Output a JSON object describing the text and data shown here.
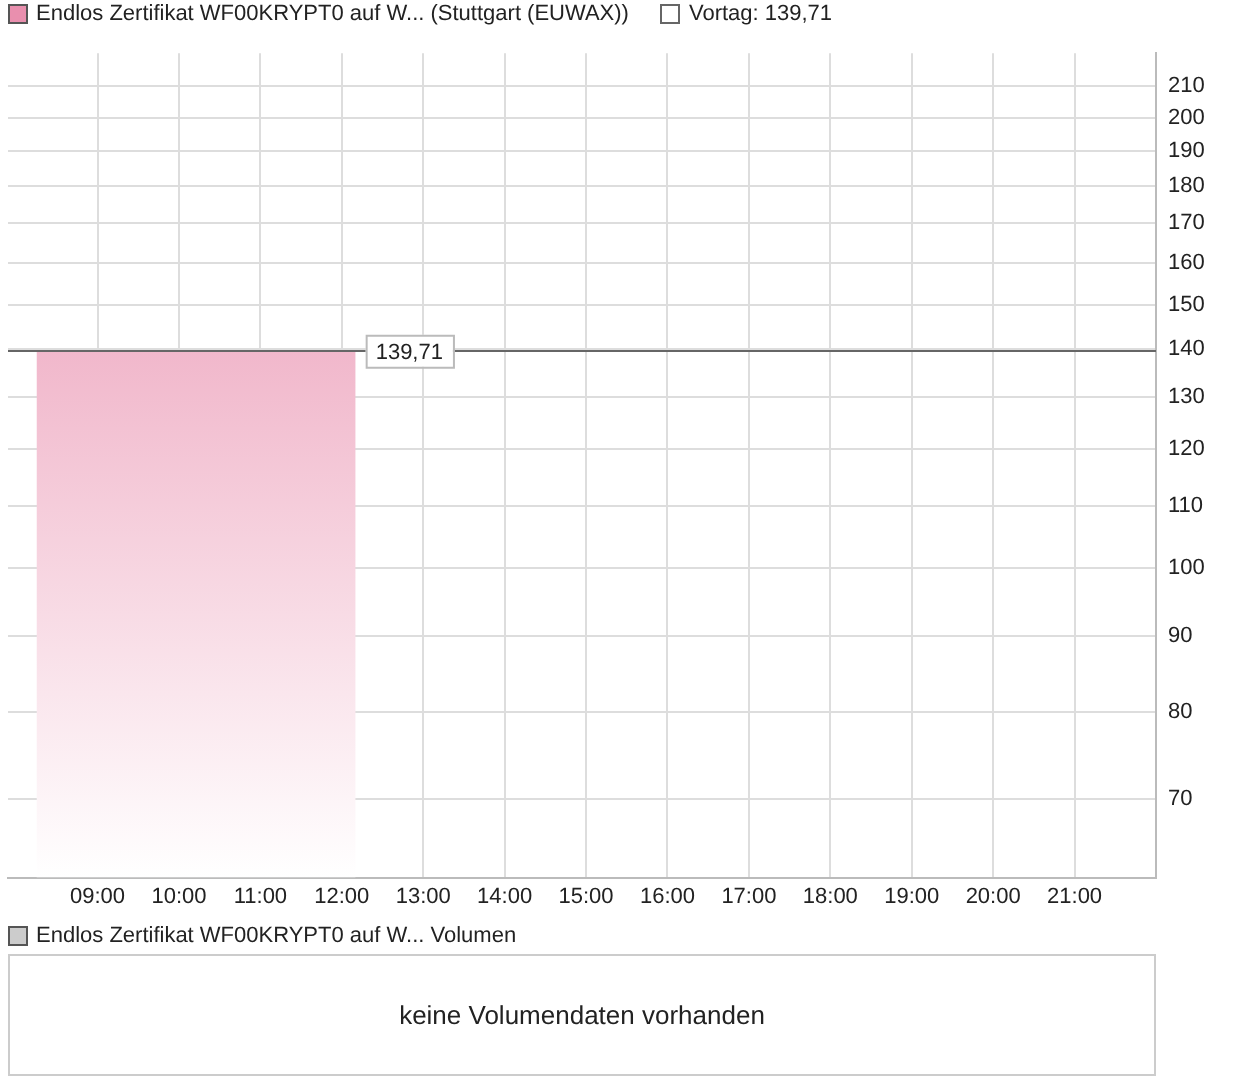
{
  "chart_data": [
    {
      "type": "area",
      "x": [
        8.25,
        12.17
      ],
      "series": [
        {
          "name": "Endlos Zertifikat WF00KRYPT0 auf W... (Stuttgart (EUWAX))",
          "color": "#e98fae",
          "values": [
            139.71,
            139.71
          ]
        }
      ],
      "log": "y",
      "xlim": [
        7.9,
        22
      ],
      "xticks": [
        {
          "value": 9,
          "label": "09:00"
        },
        {
          "value": 10,
          "label": "10:00"
        },
        {
          "value": 11,
          "label": "11:00"
        },
        {
          "value": 12,
          "label": "12:00"
        },
        {
          "value": 13,
          "label": "13:00"
        },
        {
          "value": 14,
          "label": "14:00"
        },
        {
          "value": 15,
          "label": "15:00"
        },
        {
          "value": 16,
          "label": "16:00"
        },
        {
          "value": 17,
          "label": "17:00"
        },
        {
          "value": 18,
          "label": "18:00"
        },
        {
          "value": 19,
          "label": "19:00"
        },
        {
          "value": 20,
          "label": "20:00"
        },
        {
          "value": 21,
          "label": "21:00"
        }
      ],
      "ylim": [
        62,
        221
      ],
      "yticks": [
        70,
        80,
        90,
        100,
        110,
        120,
        130,
        140,
        150,
        160,
        170,
        180,
        190,
        200,
        210
      ],
      "grid": true,
      "legend": "top left",
      "ref_lines": [
        {
          "axis": "y",
          "value": 139.71,
          "label": "Vortag: 139,71",
          "color": "#666666"
        }
      ],
      "annotations": [
        {
          "text": "139,71",
          "x": 12.17,
          "y": 139.71
        }
      ]
    },
    {
      "type": "other",
      "title": "Endlos Zertifikat WF00KRYPT0 auf W... Volumen",
      "annotations": [
        "keine Volumendaten vorhanden"
      ]
    }
  ]
}
